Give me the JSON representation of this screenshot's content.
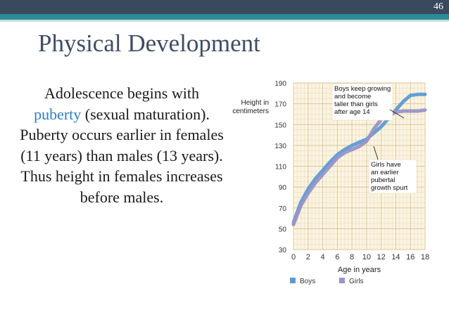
{
  "slide": {
    "number": "46",
    "title": "Physical Development"
  },
  "body": {
    "text_before": "Adolescence begins with ",
    "highlight": "puberty",
    "text_after": " (sexual maturation). Puberty occurs earlier in females (11 years) than males (13 years). Thus height in females increases before males."
  },
  "colors": {
    "boys": "#5b9bd5",
    "girls": "#9a94c8",
    "chart_bg": "#fbf4e3",
    "header": "#3a4a5e",
    "accent_band": "#2c8c98",
    "highlight_text": "#2e7fc1"
  },
  "chart_data": {
    "type": "line",
    "xlabel": "Age in years",
    "ylabel": "Height in\ncentimeters",
    "xlim": [
      0,
      18
    ],
    "ylim": [
      30,
      190
    ],
    "xticks": [
      0,
      2,
      4,
      6,
      8,
      10,
      12,
      14,
      16,
      18
    ],
    "yticks": [
      30,
      50,
      70,
      90,
      110,
      130,
      150,
      170,
      190
    ],
    "grid": true,
    "legend": "bottom",
    "series": [
      {
        "name": "Boys",
        "x": [
          0,
          1,
          2,
          3,
          4,
          5,
          6,
          7,
          8,
          9,
          10,
          11,
          12,
          13,
          14,
          15,
          16,
          17,
          18
        ],
        "y": [
          56,
          75,
          88,
          98,
          106,
          114,
          121,
          126,
          130,
          133,
          136,
          142,
          148,
          156,
          164,
          172,
          178,
          179,
          179
        ]
      },
      {
        "name": "Girls",
        "x": [
          0,
          1,
          2,
          3,
          4,
          5,
          6,
          7,
          8,
          9,
          10,
          11,
          12,
          13,
          14,
          15,
          16,
          17,
          18
        ],
        "y": [
          54,
          72,
          84,
          94,
          102,
          110,
          118,
          123,
          126,
          129,
          134,
          146,
          155,
          160,
          162,
          163,
          163,
          163,
          164
        ]
      }
    ],
    "annotations": [
      {
        "text": "Boys keep growing\nand become\ntaller than girls\nafter age 14",
        "x": 15.8,
        "y": 178
      },
      {
        "text": "Girls have\nan earlier\npubertal\ngrowth spurt",
        "x": 11.6,
        "y": 149
      }
    ]
  }
}
